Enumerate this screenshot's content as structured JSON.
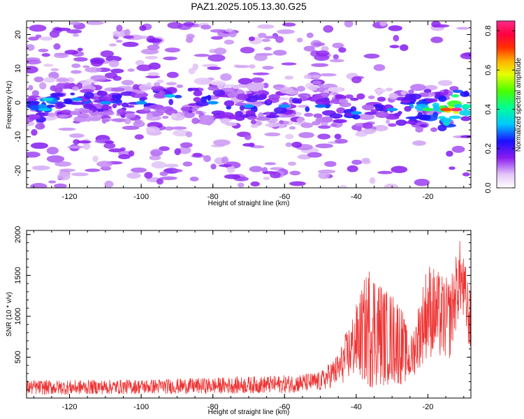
{
  "title": "PAZ1.2025.105.13.30.G25",
  "chart_data": [
    {
      "type": "heatmap",
      "xlabel": "Height of straight line (km)",
      "ylabel": "Frequency (Hz)",
      "xlim": [
        -132,
        -8
      ],
      "ylim": [
        -25,
        24
      ],
      "xticks": [
        -120,
        -100,
        -80,
        -60,
        -40,
        -20
      ],
      "yticks": [
        -20,
        -10,
        0,
        10,
        20
      ],
      "colorbar": {
        "label": "Normalized spectral amplitude",
        "range": [
          0.0,
          0.85
        ],
        "ticks": [
          0.0,
          0.2,
          0.4,
          0.6,
          0.8
        ]
      },
      "ridge": {
        "description": "main spectral band near 0 Hz, drifting from about +1 Hz at -125 km to about -2 Hz at -15 km",
        "points": [
          {
            "x": -126,
            "y": 1,
            "amp": 0.35
          },
          {
            "x": -118,
            "y": 1,
            "amp": 0.3
          },
          {
            "x": -110,
            "y": 0,
            "amp": 0.3
          },
          {
            "x": -100,
            "y": 0,
            "amp": 0.3
          },
          {
            "x": -92,
            "y": 2,
            "amp": 0.32
          },
          {
            "x": -80,
            "y": 0,
            "amp": 0.3
          },
          {
            "x": -70,
            "y": -1,
            "amp": 0.3
          },
          {
            "x": -60,
            "y": -1,
            "amp": 0.3
          },
          {
            "x": -50,
            "y": -1,
            "amp": 0.28
          },
          {
            "x": -40,
            "y": -3,
            "amp": 0.3
          },
          {
            "x": -30,
            "y": -2,
            "amp": 0.3
          },
          {
            "x": -20,
            "y": -2,
            "amp": 0.45
          },
          {
            "x": -15,
            "y": -2,
            "amp": 0.7
          },
          {
            "x": -12,
            "y": -2,
            "amp": 0.85
          },
          {
            "x": -9,
            "y": -1,
            "amp": 0.4
          }
        ]
      }
    },
    {
      "type": "line",
      "xlabel": "Height of straight line (km)",
      "ylabel": "SNR (10 * v/v)",
      "xlim": [
        -132,
        -8
      ],
      "ylim": [
        0,
        2050
      ],
      "xticks": [
        -120,
        -100,
        -80,
        -60,
        -40,
        -20
      ],
      "yticks": [
        500,
        1000,
        1500,
        2000
      ],
      "color": "#ee3333",
      "envelope": [
        {
          "x": -132,
          "mean": 130,
          "spread": 90
        },
        {
          "x": -120,
          "mean": 130,
          "spread": 90
        },
        {
          "x": -100,
          "mean": 140,
          "spread": 90
        },
        {
          "x": -80,
          "mean": 150,
          "spread": 100
        },
        {
          "x": -60,
          "mean": 170,
          "spread": 110
        },
        {
          "x": -50,
          "mean": 200,
          "spread": 120
        },
        {
          "x": -45,
          "mean": 350,
          "spread": 200
        },
        {
          "x": -40,
          "mean": 700,
          "spread": 450
        },
        {
          "x": -36,
          "mean": 900,
          "spread": 800
        },
        {
          "x": -32,
          "mean": 750,
          "spread": 600
        },
        {
          "x": -28,
          "mean": 700,
          "spread": 550
        },
        {
          "x": -25,
          "mean": 450,
          "spread": 250
        },
        {
          "x": -20,
          "mean": 1100,
          "spread": 600
        },
        {
          "x": -17,
          "mean": 1000,
          "spread": 550
        },
        {
          "x": -14,
          "mean": 950,
          "spread": 500
        },
        {
          "x": -11,
          "mean": 1500,
          "spread": 450
        },
        {
          "x": -8,
          "mean": 900,
          "spread": 400
        }
      ]
    }
  ]
}
